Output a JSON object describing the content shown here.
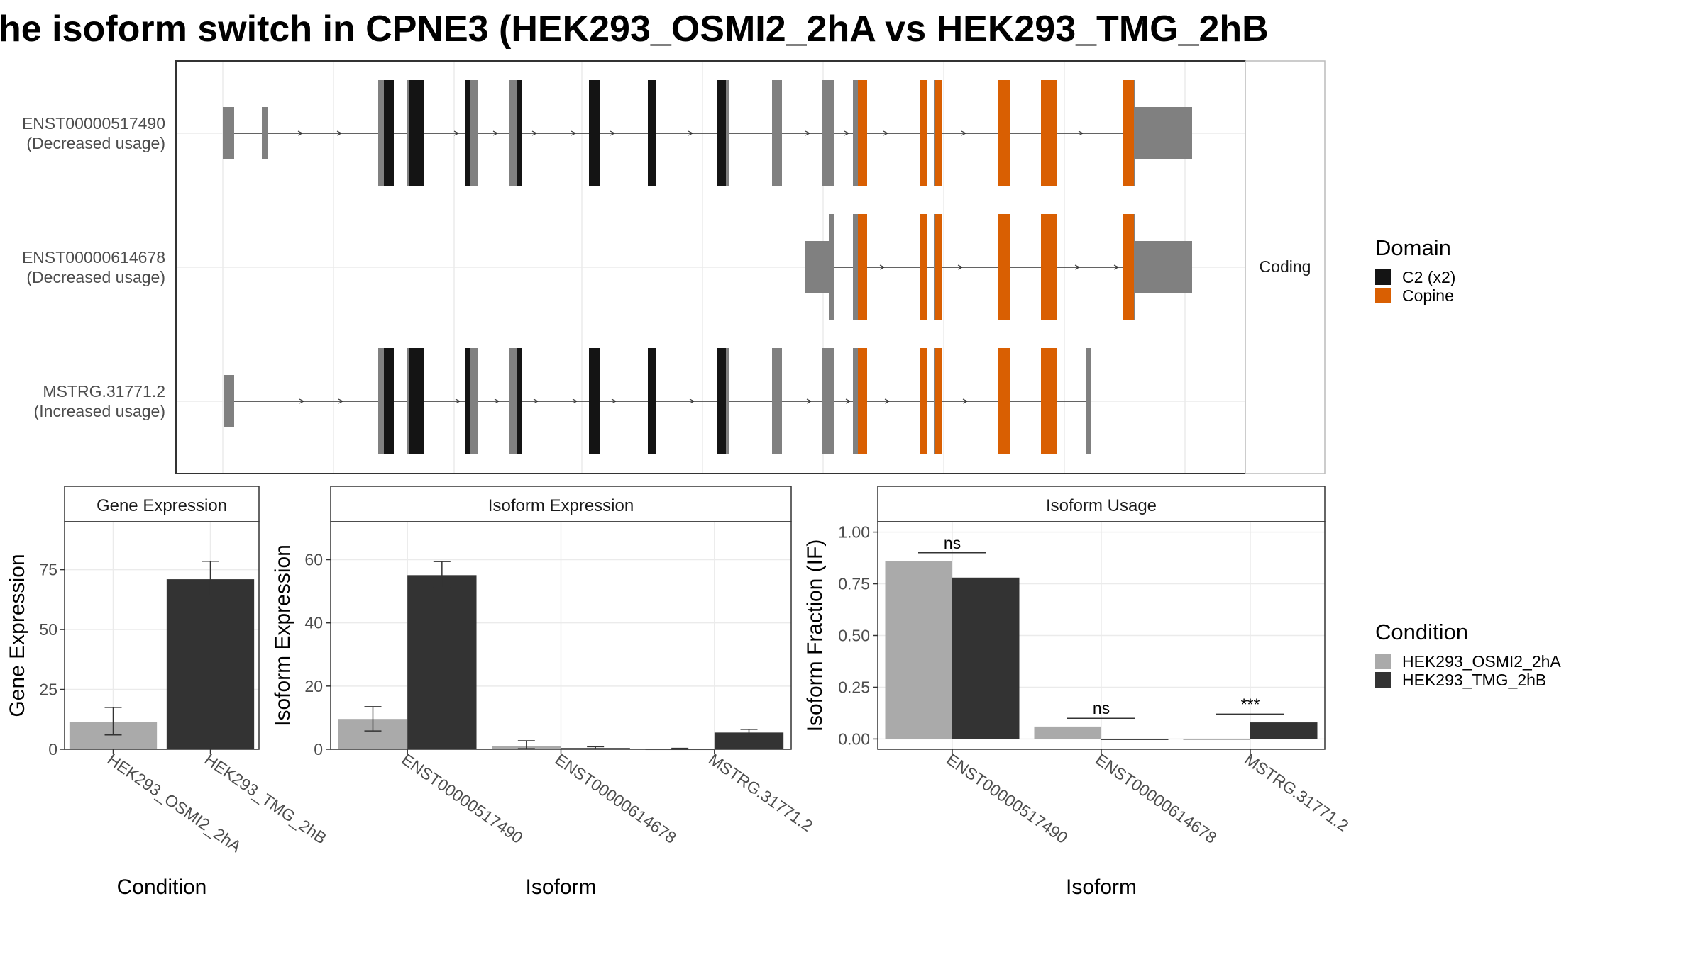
{
  "title": "he isoform switch in CPNE3 (HEK293_OSMI2_2hA vs HEK293_TMG_2hB",
  "colors": {
    "c2_domain": "#141414",
    "copine_domain": "#d95f02",
    "exon": "#808080",
    "cond_A": "#aaaaaa",
    "cond_B": "#333333",
    "grid": "#ebebeb",
    "strip_bg": "#ffffff"
  },
  "isoform_structure": {
    "strip_label": "Coding",
    "rows": [
      {
        "name": "ENST00000517490",
        "usage": "(Decreased usage)",
        "utr": [
          [
            314,
            330
          ],
          [
            369,
            378
          ],
          [
            1598,
            1680
          ]
        ],
        "exons": [
          [
            533,
            550
          ],
          [
            574,
            597
          ],
          [
            656,
            673
          ],
          [
            718,
            736
          ],
          [
            830,
            845
          ],
          [
            913,
            925
          ],
          [
            1010,
            1027
          ],
          [
            1088,
            1102
          ],
          [
            1158,
            1175
          ],
          [
            1202,
            1215
          ],
          [
            1296,
            1305
          ],
          [
            1316,
            1326
          ],
          [
            1406,
            1424
          ],
          [
            1467,
            1490
          ],
          [
            1582,
            1600
          ]
        ],
        "c2": [
          [
            541,
            555
          ],
          [
            576,
            597
          ],
          [
            656,
            662
          ],
          [
            729,
            736
          ],
          [
            830,
            845
          ],
          [
            913,
            925
          ],
          [
            1010,
            1023
          ]
        ],
        "copine": [
          [
            1209,
            1222
          ],
          [
            1296,
            1306
          ],
          [
            1317,
            1327
          ],
          [
            1406,
            1424
          ],
          [
            1467,
            1490
          ],
          [
            1582,
            1598
          ]
        ]
      },
      {
        "name": "ENST00000614678",
        "usage": "(Decreased usage)",
        "utr": [
          [
            1134,
            1172
          ],
          [
            1598,
            1680
          ]
        ],
        "exons": [
          [
            1168,
            1175
          ],
          [
            1202,
            1215
          ],
          [
            1296,
            1305
          ],
          [
            1316,
            1326
          ],
          [
            1406,
            1424
          ],
          [
            1467,
            1490
          ],
          [
            1582,
            1600
          ]
        ],
        "c2": [],
        "copine": [
          [
            1209,
            1222
          ],
          [
            1296,
            1306
          ],
          [
            1317,
            1327
          ],
          [
            1406,
            1424
          ],
          [
            1467,
            1490
          ],
          [
            1582,
            1598
          ]
        ]
      },
      {
        "name": "MSTRG.31771.2",
        "usage": "(Increased usage)",
        "utr": [
          [
            316,
            330
          ]
        ],
        "exons": [
          [
            533,
            550
          ],
          [
            574,
            597
          ],
          [
            656,
            673
          ],
          [
            718,
            736
          ],
          [
            830,
            845
          ],
          [
            913,
            925
          ],
          [
            1010,
            1027
          ],
          [
            1088,
            1102
          ],
          [
            1158,
            1175
          ],
          [
            1202,
            1215
          ],
          [
            1296,
            1305
          ],
          [
            1316,
            1326
          ],
          [
            1406,
            1424
          ],
          [
            1467,
            1490
          ],
          [
            1530,
            1537
          ]
        ],
        "c2": [
          [
            541,
            555
          ],
          [
            576,
            597
          ],
          [
            656,
            662
          ],
          [
            729,
            736
          ],
          [
            830,
            845
          ],
          [
            913,
            925
          ],
          [
            1010,
            1023
          ]
        ],
        "copine": [
          [
            1209,
            1222
          ],
          [
            1296,
            1306
          ],
          [
            1317,
            1327
          ],
          [
            1406,
            1424
          ],
          [
            1467,
            1490
          ]
        ]
      }
    ]
  },
  "legend_domain": {
    "title": "Domain",
    "items": [
      {
        "label": "C2 (x2)",
        "color": "#141414"
      },
      {
        "label": "Copine",
        "color": "#d95f02"
      }
    ]
  },
  "legend_condition": {
    "title": "Condition",
    "items": [
      {
        "label": "HEK293_OSMI2_2hA",
        "color": "#aaaaaa"
      },
      {
        "label": "HEK293_TMG_2hB",
        "color": "#333333"
      }
    ]
  },
  "chart_data": [
    {
      "type": "bar",
      "title": "Gene Expression",
      "xlabel": "Condition",
      "ylabel": "Gene Expression",
      "ylim": [
        0,
        95
      ],
      "yticks": [
        0,
        25,
        50,
        75
      ],
      "categories": [
        "HEK293_OSMI2_2hA",
        "HEK293_TMG_2hB"
      ],
      "values": [
        11.5,
        71
      ],
      "errors": [
        [
          6,
          17.5
        ],
        [
          64,
          78.5
        ]
      ],
      "colors": [
        "#aaaaaa",
        "#333333"
      ]
    },
    {
      "type": "bar",
      "title": "Isoform Expression",
      "xlabel": "Isoform",
      "ylabel": "Isoform Expression",
      "ylim": [
        0,
        72
      ],
      "yticks": [
        0,
        20,
        40,
        60
      ],
      "categories": [
        "ENST00000517490",
        "ENST00000614678",
        "MSTRG.31771.2"
      ],
      "series": [
        {
          "name": "HEK293_OSMI2_2hA",
          "values": [
            9.6,
            1.0,
            0.1
          ],
          "errors": [
            [
              5.8,
              13.5
            ],
            [
              0.2,
              2.7
            ],
            [
              0,
              0.3
            ]
          ]
        },
        {
          "name": "HEK293_TMG_2hB",
          "values": [
            55.1,
            0.4,
            5.3
          ],
          "errors": [
            [
              51.2,
              59.4
            ],
            [
              0.1,
              0.8
            ],
            [
              4.4,
              6.3
            ]
          ]
        }
      ]
    },
    {
      "type": "bar",
      "title": "Isoform Usage",
      "xlabel": "Isoform",
      "ylabel": "Isoform Fraction (IF)",
      "ylim": [
        -0.05,
        1.05
      ],
      "yticks": [
        "0.00",
        "0.25",
        "0.50",
        "0.75",
        "1.00"
      ],
      "categories": [
        "ENST00000517490",
        "ENST00000614678",
        "MSTRG.31771.2"
      ],
      "series": [
        {
          "name": "HEK293_OSMI2_2hA",
          "values": [
            0.86,
            0.06,
            0.0
          ]
        },
        {
          "name": "HEK293_TMG_2hB",
          "values": [
            0.78,
            0.0,
            0.08
          ]
        }
      ],
      "significance": [
        "ns",
        "ns",
        "***"
      ]
    }
  ]
}
